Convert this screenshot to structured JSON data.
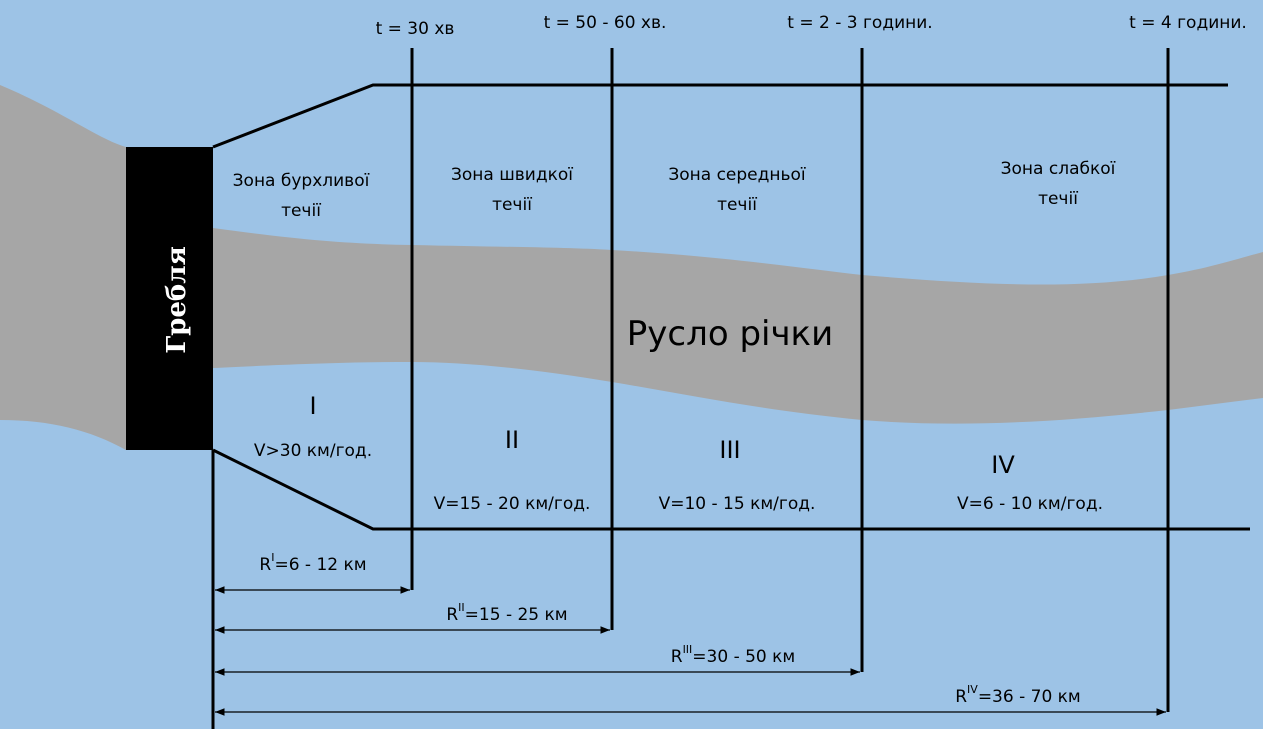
{
  "dam": "Гребля",
  "river": "Русло річки",
  "times": [
    "t = 30 хв",
    "t = 50 - 60 хв.",
    "t = 2 - 3 години.",
    "t = 4 години."
  ],
  "zones": [
    {
      "name": [
        "Зона бурхливої",
        "течії"
      ],
      "numeral": "I",
      "speed": "V>30 км/год."
    },
    {
      "name": [
        "Зона швидкої",
        "течії"
      ],
      "numeral": "II",
      "speed": "V=15 - 20 км/год."
    },
    {
      "name": [
        "Зона середньої",
        "течії"
      ],
      "numeral": "III",
      "speed": "V=10 - 15 км/год."
    },
    {
      "name": [
        "Зона слабкої",
        "течії"
      ],
      "numeral": "IV",
      "speed": "V=6 - 10 км/год."
    }
  ],
  "distances": [
    {
      "symbol": "R",
      "index": "I",
      "range": "=6 - 12 км"
    },
    {
      "symbol": "R",
      "index": "II",
      "range": "=15 - 25 км"
    },
    {
      "symbol": "R",
      "index": "III",
      "range": "=30 - 50 км"
    },
    {
      "symbol": "R",
      "index": "IV",
      "range": "=36 - 70 км"
    }
  ]
}
